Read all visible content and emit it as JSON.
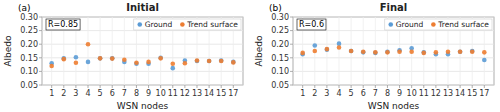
{
  "chart_data": [
    {
      "type": "scatter",
      "title": "Initial",
      "x_label": "WSN nodes",
      "y_label": "Albedo",
      "annotations": [
        "(a)",
        "R=0.85"
      ],
      "categories": [
        1,
        2,
        3,
        4,
        5,
        6,
        7,
        8,
        9,
        10,
        11,
        12,
        13,
        14,
        15,
        17
      ],
      "series": [
        {
          "name": "Ground",
          "color": "#5b9bd5",
          "values": [
            0.13,
            0.148,
            0.152,
            0.135,
            0.148,
            0.148,
            0.135,
            0.128,
            0.128,
            0.15,
            0.112,
            0.14,
            0.138,
            0.138,
            0.14,
            0.135
          ]
        },
        {
          "name": "Trend surface",
          "color": "#ed7d31",
          "values": [
            0.12,
            0.145,
            0.132,
            0.2,
            0.148,
            0.147,
            0.143,
            0.132,
            0.135,
            0.148,
            0.128,
            0.13,
            0.14,
            0.138,
            0.138,
            0.133
          ]
        }
      ],
      "ylim": [
        0.05,
        0.3
      ],
      "yticks": [
        0.05,
        {
          "value": 0.1,
          "label": "0.10"
        },
        0.15,
        {
          "value": 0.2,
          "label": "0.20"
        },
        0.25,
        {
          "value": 0.3,
          "label": "0.30"
        }
      ],
      "grid": true,
      "legend": "upper right"
    },
    {
      "type": "scatter",
      "title": "Final",
      "x_label": "WSN nodes",
      "y_label": "Albedo",
      "annotations": [
        "(b)",
        "R=0.6"
      ],
      "categories": [
        1,
        2,
        3,
        4,
        5,
        6,
        7,
        8,
        9,
        10,
        11,
        12,
        13,
        14,
        15,
        17
      ],
      "series": [
        {
          "name": "Ground",
          "color": "#5b9bd5",
          "values": [
            0.163,
            0.195,
            0.18,
            0.202,
            0.175,
            0.17,
            0.168,
            0.172,
            0.178,
            0.185,
            0.17,
            0.163,
            0.163,
            0.172,
            0.175,
            0.142
          ]
        },
        {
          "name": "Trend surface",
          "color": "#ed7d31",
          "values": [
            0.168,
            0.175,
            0.182,
            0.188,
            0.175,
            0.172,
            0.17,
            0.17,
            0.172,
            0.172,
            0.168,
            0.17,
            0.172,
            0.172,
            0.172,
            0.17
          ]
        }
      ],
      "ylim": [
        0.05,
        0.3
      ],
      "yticks": [
        0.05,
        {
          "value": 0.1,
          "label": "0.10"
        },
        0.15,
        {
          "value": 0.2,
          "label": "0.20"
        },
        0.25,
        {
          "value": 0.3,
          "label": "0.30"
        }
      ],
      "grid": true,
      "legend": "upper right"
    }
  ]
}
